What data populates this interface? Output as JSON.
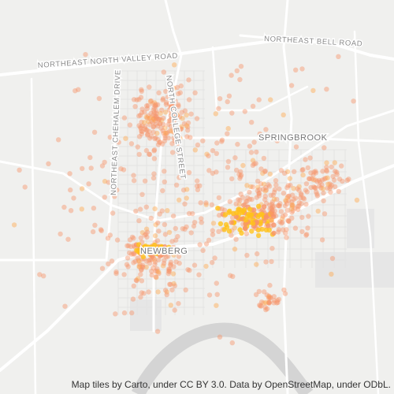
{
  "roads": {
    "north_valley": "NORTHEAST NORTH VALLEY ROAD",
    "bell": "NORTHEAST BELL ROAD",
    "college": "NORTH COLLEGE STREET",
    "chehalem": "NORTHEAST CHEHALEM DRIVE"
  },
  "places": {
    "springbrook": "SPRINGBROOK",
    "newberg": "NEWBERG"
  },
  "attribution": "Map tiles by Carto, under CC BY 3.0. Data by OpenStreetMap, under ODbL."
}
